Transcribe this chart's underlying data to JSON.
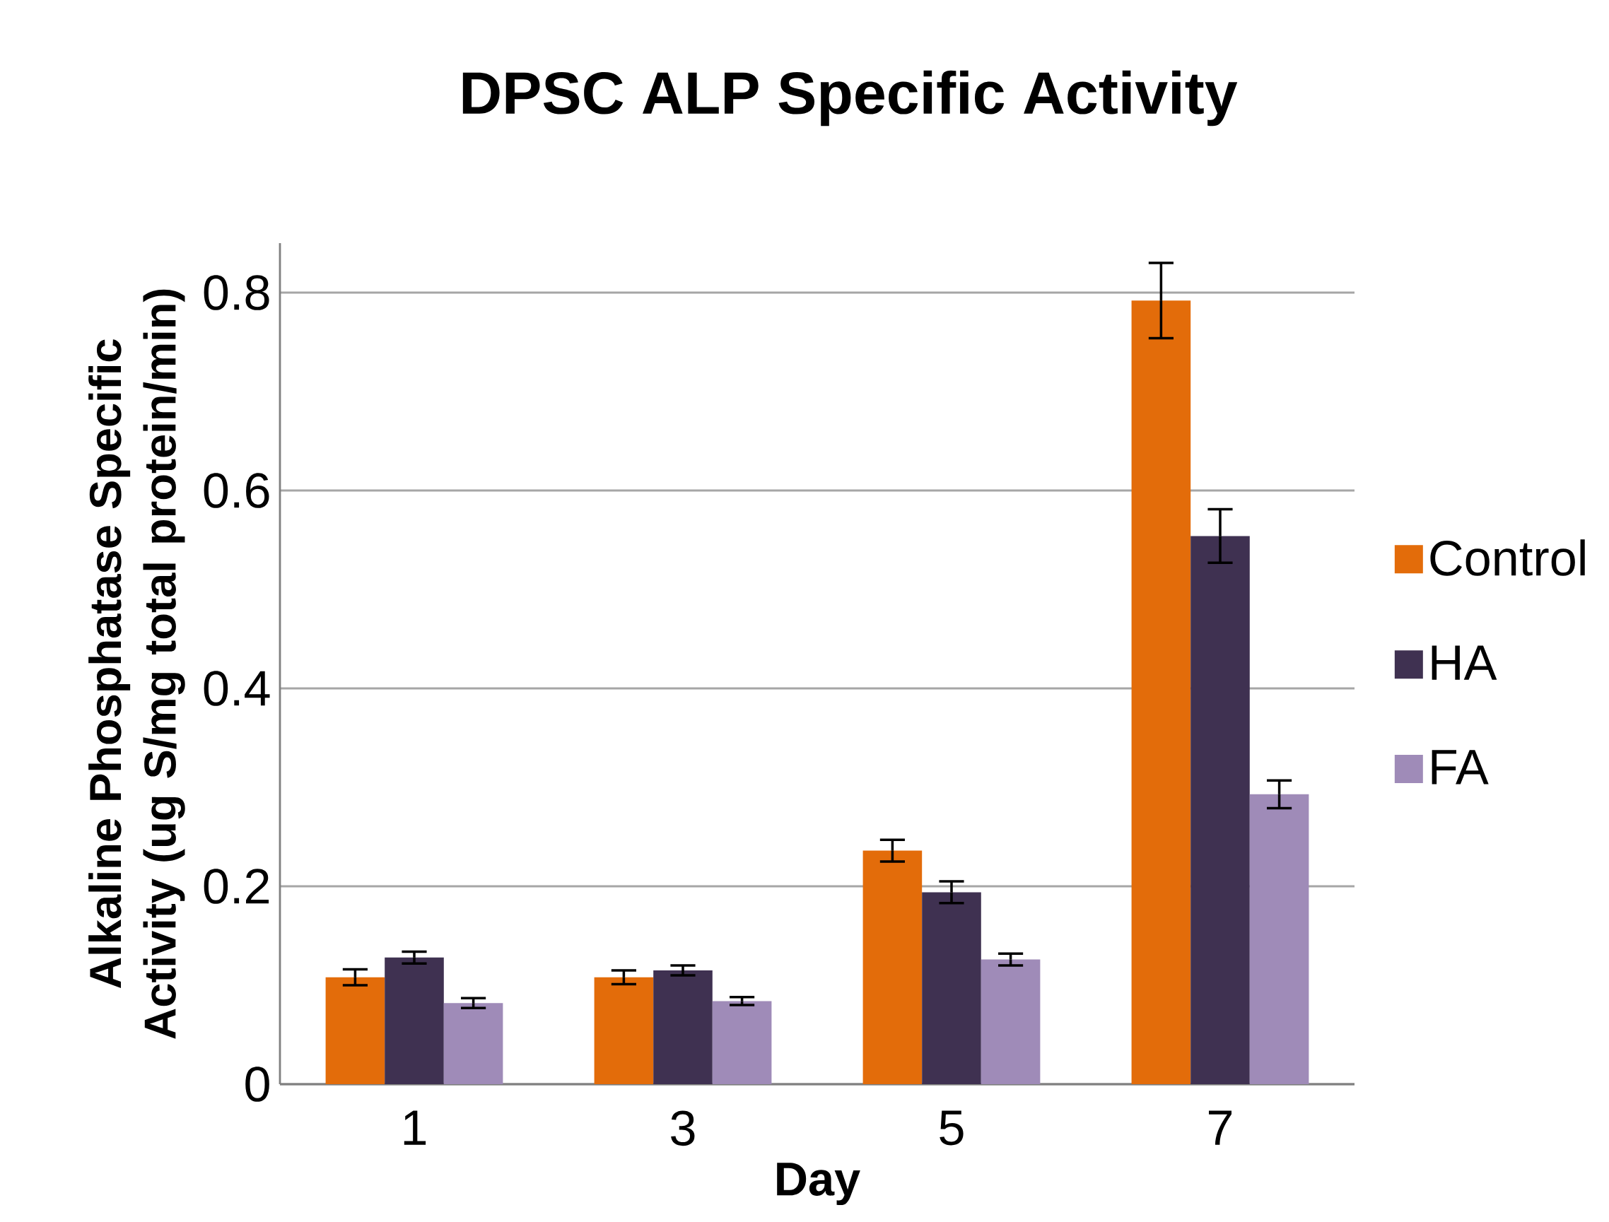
{
  "chart_data": {
    "type": "bar",
    "title": "DPSC ALP Specific Activity",
    "xlabel": "Day",
    "ylabel": "Alkaline Phosphatase Specific Activity (ug S/mg total protein/min)",
    "categories": [
      "1",
      "3",
      "5",
      "7"
    ],
    "series": [
      {
        "name": "Control",
        "color": "#e36c0a",
        "values": [
          0.108,
          0.108,
          0.236,
          0.792
        ],
        "errors": [
          0.008,
          0.007,
          0.011,
          0.038
        ]
      },
      {
        "name": "HA",
        "color": "#3f3151",
        "values": [
          0.128,
          0.115,
          0.194,
          0.554
        ],
        "errors": [
          0.006,
          0.005,
          0.011,
          0.027
        ]
      },
      {
        "name": "FA",
        "color": "#9f8bb8",
        "values": [
          0.082,
          0.084,
          0.126,
          0.293
        ],
        "errors": [
          0.005,
          0.004,
          0.006,
          0.014
        ]
      }
    ],
    "ylim": [
      0,
      0.85
    ],
    "yticks": [
      0,
      0.2,
      0.4,
      0.6,
      0.8
    ],
    "grid": "y",
    "legend": "right"
  }
}
